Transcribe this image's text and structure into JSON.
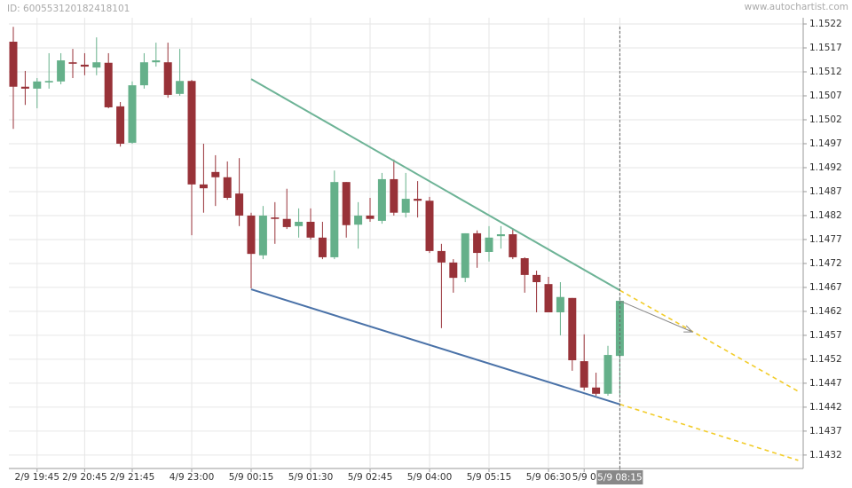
{
  "header": {
    "id": "ID: 600553120182418101",
    "site": "www.autochartist.com"
  },
  "chart_data": {
    "type": "candlestick",
    "categories": [
      null,
      null,
      "2/9 19:45",
      null,
      null,
      null,
      "2/9 20:45",
      null,
      null,
      null,
      "2/9 21:45",
      null,
      null,
      null,
      null,
      "4/9 23:00",
      null,
      null,
      null,
      null,
      "5/9 00:15",
      null,
      null,
      null,
      null,
      "5/9 01:30",
      null,
      null,
      null,
      null,
      "5/9 02:45",
      null,
      null,
      null,
      null,
      "5/9 04:00",
      null,
      null,
      null,
      null,
      "5/9 05:15",
      null,
      null,
      null,
      null,
      "5/9 06:30",
      null,
      null,
      "5/9 0",
      null,
      null,
      "5/9 08:15"
    ],
    "open": [
      1.15183,
      1.15089,
      1.15085,
      1.15098,
      1.151,
      1.1514,
      1.15135,
      1.15129,
      1.15139,
      1.15048,
      1.14972,
      1.15092,
      1.1514,
      1.1514,
      1.15074,
      1.15101,
      1.14885,
      1.14911,
      1.149,
      1.14866,
      1.1482,
      1.14737,
      1.14816,
      1.14813,
      1.14798,
      1.14807,
      1.14774,
      1.14733,
      1.1489,
      1.14801,
      1.1482,
      1.14809,
      1.14896,
      1.14826,
      1.14855,
      1.14851,
      1.14746,
      1.14722,
      1.1469,
      1.14783,
      1.14744,
      1.14777,
      1.14781,
      1.14731,
      1.14696,
      1.14677,
      1.14618,
      1.14648,
      1.14516,
      1.14461,
      1.14448,
      1.14527
    ],
    "high": [
      1.15214,
      1.15122,
      1.15107,
      1.15159,
      1.15159,
      1.15168,
      1.15159,
      1.15192,
      1.15159,
      1.15057,
      1.151,
      1.15159,
      1.15181,
      1.15181,
      1.15168,
      1.15103,
      1.1497,
      1.14946,
      1.14933,
      1.1494,
      1.14826,
      1.1484,
      1.14848,
      1.14876,
      1.14835,
      1.14835,
      1.14807,
      1.14914,
      1.1489,
      1.14848,
      1.14857,
      1.14909,
      1.14937,
      1.14909,
      1.14892,
      1.14859,
      1.14761,
      1.14729,
      1.14783,
      1.14789,
      1.14798,
      1.14798,
      1.14792,
      1.14733,
      1.14705,
      1.14692,
      1.14681,
      1.14648,
      1.14572,
      1.14492,
      1.14548,
      1.1465
    ],
    "low": [
      1.15001,
      1.15051,
      1.15044,
      1.15085,
      1.15094,
      1.15107,
      1.15113,
      1.15113,
      1.15044,
      1.14964,
      1.1497,
      1.15085,
      1.15131,
      1.15066,
      1.1507,
      1.14779,
      1.14826,
      1.1484,
      1.14853,
      1.14798,
      1.14668,
      1.14729,
      1.14761,
      1.14792,
      1.14774,
      1.1477,
      1.14729,
      1.14729,
      1.14774,
      1.14751,
      1.14807,
      1.14803,
      1.1482,
      1.14816,
      1.14816,
      1.14742,
      1.14585,
      1.14659,
      1.14681,
      1.14711,
      1.14724,
      1.14751,
      1.14729,
      1.14659,
      1.14618,
      1.14618,
      1.1457,
      1.14496,
      1.14455,
      1.14444,
      1.14444,
      1.14446
    ],
    "close": [
      1.15089,
      1.15085,
      1.151,
      1.15101,
      1.15144,
      1.15137,
      1.15131,
      1.1514,
      1.15046,
      1.1497,
      1.15092,
      1.1514,
      1.15144,
      1.15072,
      1.15101,
      1.14885,
      1.14877,
      1.149,
      1.14857,
      1.1482,
      1.1474,
      1.1482,
      1.14813,
      1.14796,
      1.14807,
      1.14774,
      1.14733,
      1.1489,
      1.148,
      1.1482,
      1.14813,
      1.14896,
      1.14826,
      1.14855,
      1.14851,
      1.14746,
      1.14722,
      1.1469,
      1.14783,
      1.14742,
      1.14774,
      1.14781,
      1.14733,
      1.14696,
      1.14681,
      1.14618,
      1.1465,
      1.14518,
      1.14461,
      1.14448,
      1.14529,
      1.14642
    ],
    "up_color": "#65b08a",
    "down_color": "#983238",
    "ylim": [
      1.14292,
      1.15233
    ],
    "yticks": [
      1.1522,
      1.1517,
      1.1512,
      1.1507,
      1.1502,
      1.1497,
      1.1492,
      1.1487,
      1.1482,
      1.1477,
      1.1472,
      1.1467,
      1.1462,
      1.1457,
      1.1452,
      1.1447,
      1.1442,
      1.1437,
      1.1432
    ],
    "grid": true,
    "trend_lines": [
      {
        "color": "#6db396",
        "points": [
          [
            20,
            1.15105
          ],
          [
            51,
            1.14664
          ]
        ],
        "projection": [
          [
            51,
            1.14664
          ],
          [
            66,
            1.14453
          ]
        ]
      },
      {
        "color": "#4a72a8",
        "points": [
          [
            20,
            1.14666
          ],
          [
            51,
            1.14426
          ]
        ],
        "projection": [
          [
            51,
            1.14426
          ],
          [
            66,
            1.14309
          ]
        ]
      }
    ],
    "projection_color": "#f2cc2a",
    "forecast_arrow": {
      "color": "#888888",
      "points": [
        [
          51,
          1.14642
        ],
        [
          57.1,
          1.14577
        ]
      ]
    }
  }
}
